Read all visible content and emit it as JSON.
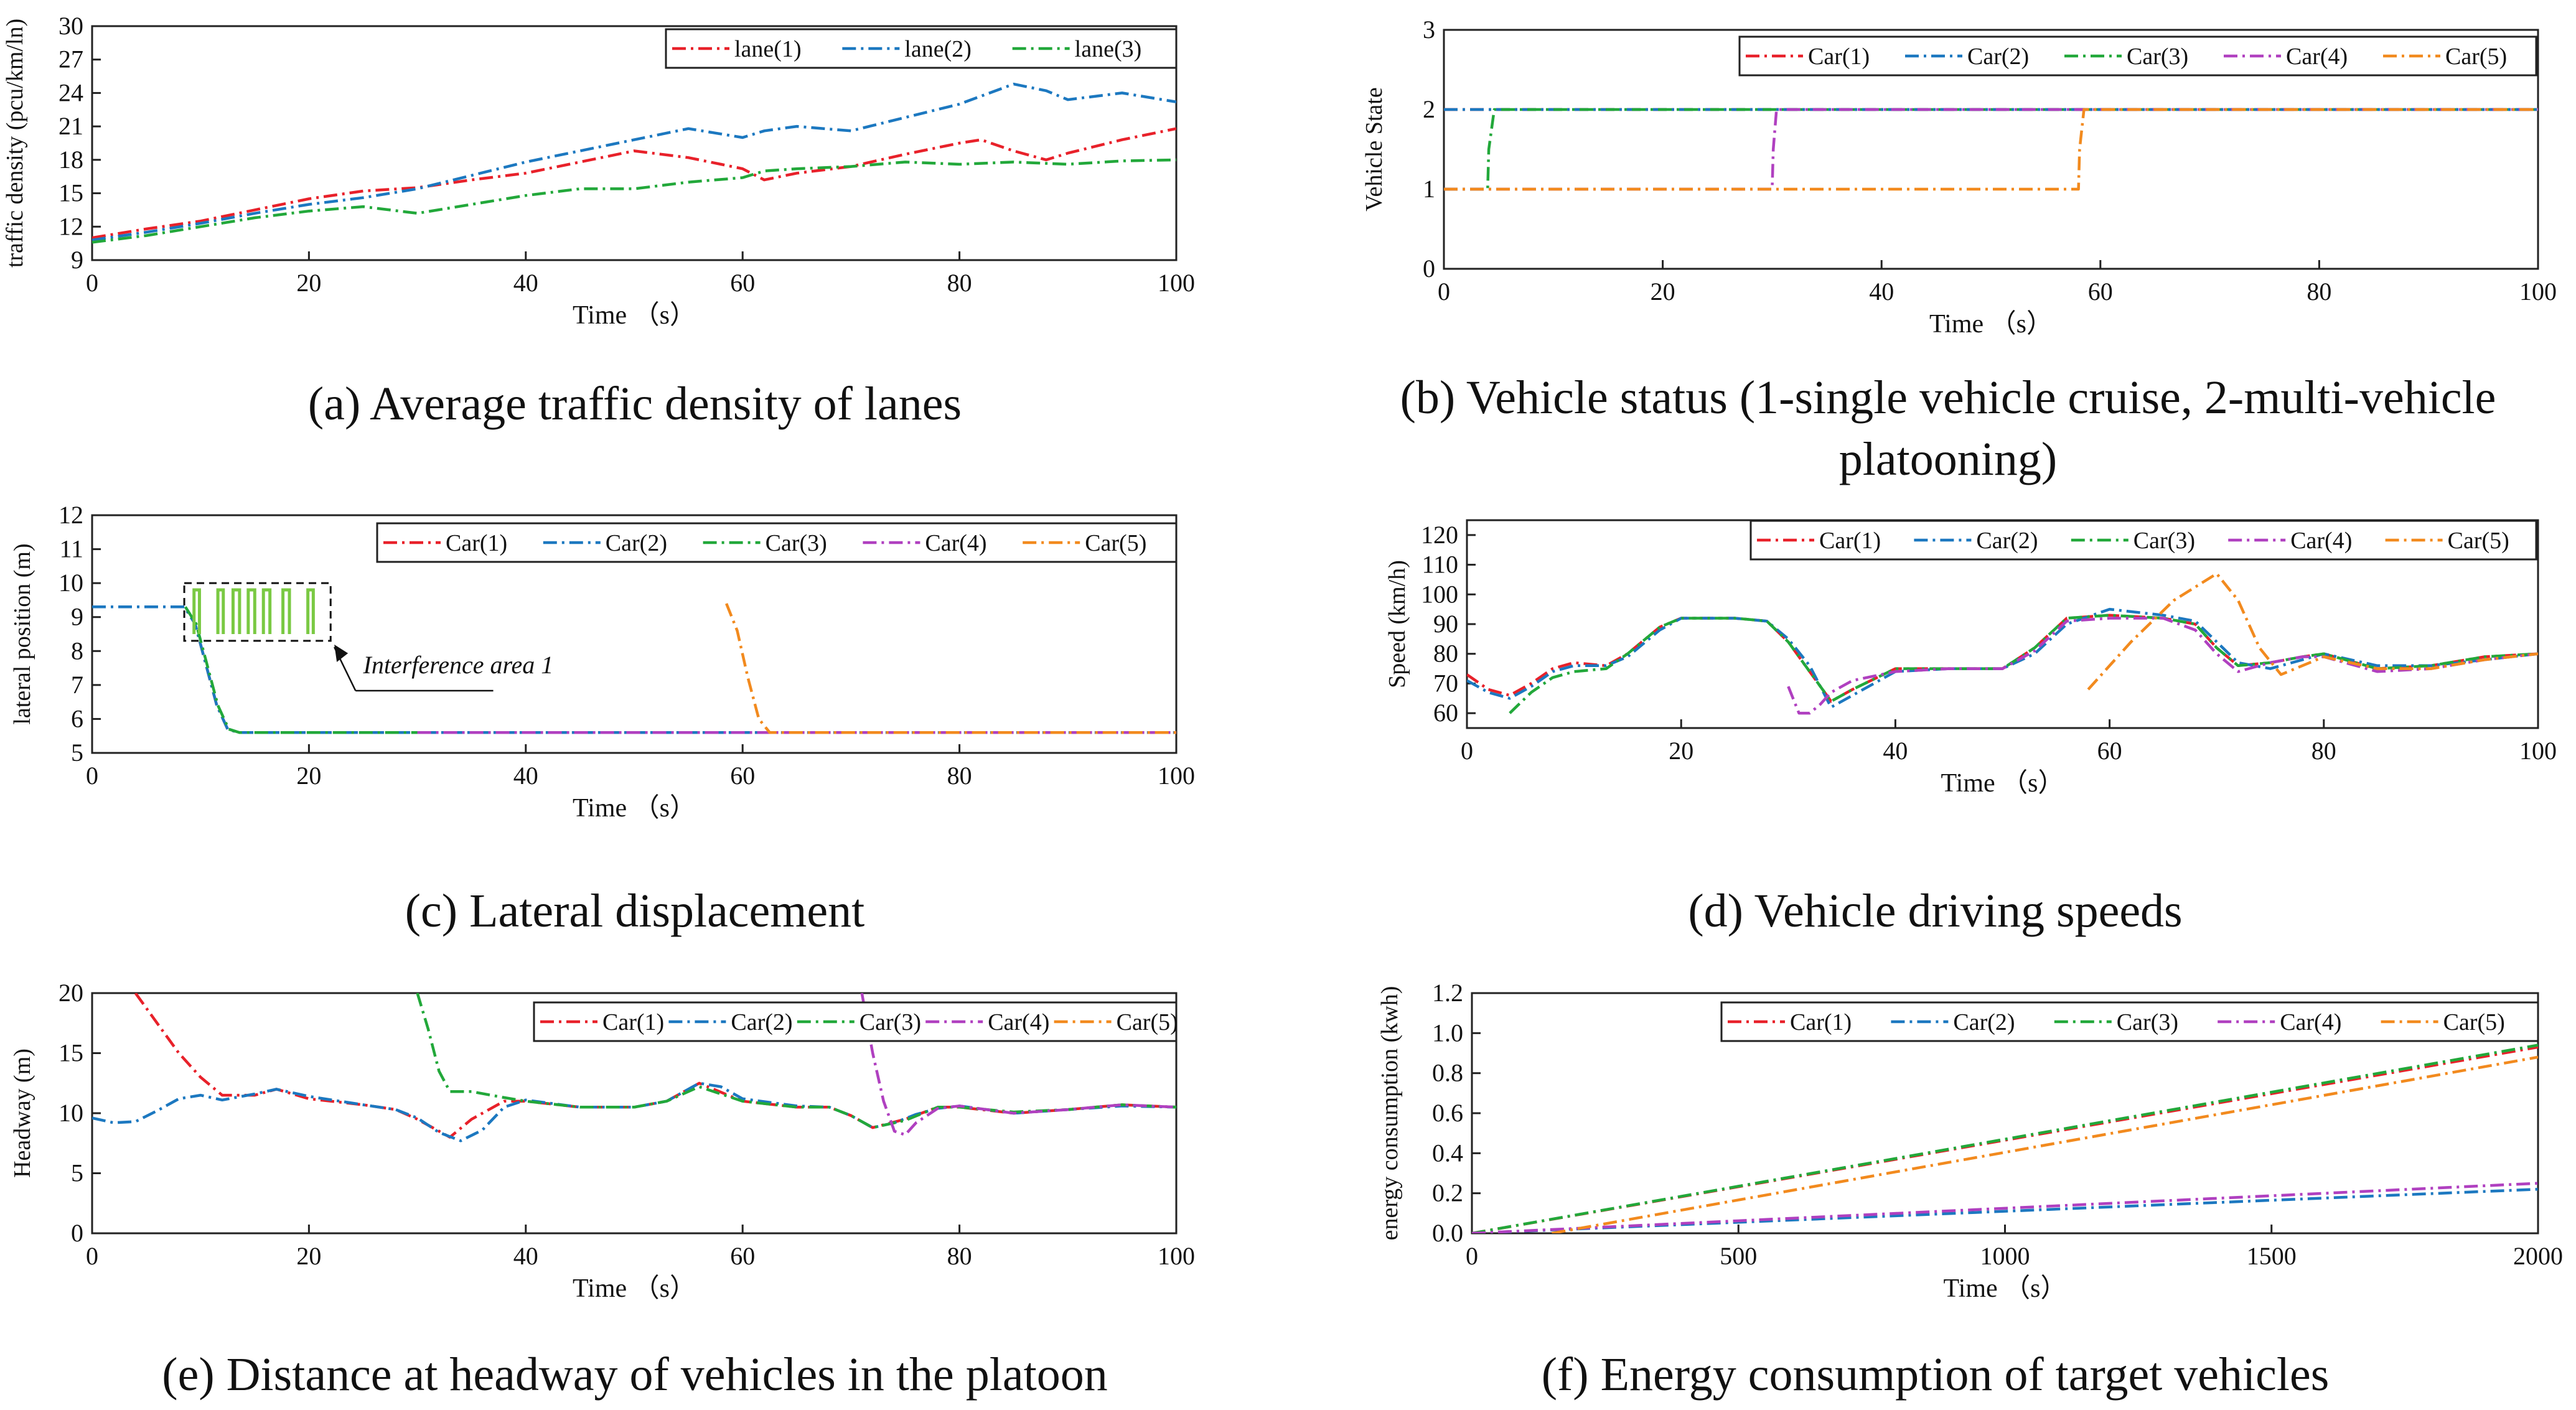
{
  "colors": {
    "c1": "#e8212a",
    "c2": "#1c78c0",
    "c3": "#22a83a",
    "c4": "#b040c0",
    "c5": "#f28a1e",
    "axis": "#222222"
  },
  "captions": {
    "a": "(a) Average traffic density of lanes",
    "b": "(b) Vehicle status (1-single vehicle cruise, 2-multi-vehicle platooning)",
    "c": "(c) Lateral displacement",
    "d": "(d) Vehicle driving speeds",
    "e": "(e) Distance at headway of vehicles in the platoon",
    "f": "(f) Energy consumption of target vehicles"
  },
  "chart_data": [
    {
      "id": "a",
      "type": "line",
      "title": "Average traffic density of lanes",
      "xlabel": "Time （s）",
      "ylabel": "traffic density (pcu/km/ln)",
      "xlim": [
        0,
        100
      ],
      "ylim": [
        9,
        30
      ],
      "xticks": [
        0,
        20,
        40,
        60,
        80,
        100
      ],
      "yticks": [
        9,
        12,
        15,
        18,
        21,
        24,
        27,
        30
      ],
      "legend_position": "top-right",
      "series": [
        {
          "name": "lane(1)",
          "color": "#e8212a",
          "x": [
            0,
            5,
            10,
            15,
            20,
            25,
            30,
            35,
            40,
            45,
            50,
            55,
            58,
            60,
            62,
            65,
            70,
            75,
            80,
            82,
            85,
            88,
            90,
            95,
            100
          ],
          "y": [
            11,
            11.8,
            12.5,
            13.5,
            14.5,
            15.2,
            15.5,
            16.2,
            16.8,
            17.8,
            18.8,
            18.2,
            17.6,
            17.2,
            16.2,
            16.8,
            17.4,
            18.5,
            19.5,
            19.8,
            18.8,
            18,
            18.6,
            19.8,
            20.8
          ]
        },
        {
          "name": "lane(2)",
          "color": "#1c78c0",
          "x": [
            0,
            5,
            10,
            15,
            20,
            25,
            30,
            35,
            40,
            45,
            50,
            55,
            60,
            62,
            65,
            70,
            75,
            80,
            85,
            88,
            90,
            95,
            100
          ],
          "y": [
            10.8,
            11.5,
            12.3,
            13.2,
            14,
            14.6,
            15.4,
            16.6,
            17.8,
            18.8,
            19.8,
            20.8,
            20,
            20.6,
            21,
            20.6,
            21.8,
            23,
            24.8,
            24.2,
            23.4,
            24,
            23.2
          ]
        },
        {
          "name": "lane(3)",
          "color": "#22a83a",
          "x": [
            0,
            5,
            10,
            15,
            20,
            25,
            30,
            35,
            40,
            45,
            50,
            55,
            60,
            62,
            65,
            70,
            75,
            80,
            85,
            90,
            95,
            100
          ],
          "y": [
            10.6,
            11.2,
            12,
            12.8,
            13.4,
            13.8,
            13.2,
            14,
            14.8,
            15.4,
            15.4,
            16,
            16.4,
            17,
            17.2,
            17.4,
            17.8,
            17.6,
            17.8,
            17.6,
            17.9,
            18
          ]
        }
      ]
    },
    {
      "id": "b",
      "type": "line",
      "title": "Vehicle status",
      "xlabel": "Time （s）",
      "ylabel": "Vehicle State",
      "xlim": [
        0,
        100
      ],
      "ylim": [
        0,
        3
      ],
      "xticks": [
        0,
        20,
        40,
        60,
        80,
        100
      ],
      "yticks": [
        0,
        1,
        2,
        3
      ],
      "legend_position": "top-right",
      "series": [
        {
          "name": "Car(1)",
          "color": "#e8212a",
          "x": [
            0,
            100
          ],
          "y": [
            2,
            2
          ]
        },
        {
          "name": "Car(2)",
          "color": "#1c78c0",
          "x": [
            0,
            100
          ],
          "y": [
            2,
            2
          ]
        },
        {
          "name": "Car(3)",
          "color": "#22a83a",
          "x": [
            0,
            4,
            4.1,
            4.6,
            100
          ],
          "y": [
            1,
            1,
            1.5,
            2,
            2
          ]
        },
        {
          "name": "Car(4)",
          "color": "#b040c0",
          "x": [
            0,
            30,
            30.1,
            30.4,
            100
          ],
          "y": [
            1,
            1,
            1.5,
            2,
            2
          ]
        },
        {
          "name": "Car(5)",
          "color": "#f28a1e",
          "x": [
            0,
            58,
            58.1,
            58.5,
            100
          ],
          "y": [
            1,
            1,
            1.5,
            2,
            2
          ]
        }
      ]
    },
    {
      "id": "c",
      "type": "line",
      "title": "Lateral displacement",
      "xlabel": "Time （s）",
      "ylabel": "lateral position (m)",
      "xlim": [
        0,
        100
      ],
      "ylim": [
        5,
        12
      ],
      "xticks": [
        0,
        20,
        40,
        60,
        80,
        100
      ],
      "yticks": [
        5,
        6,
        7,
        8,
        9,
        10,
        11,
        12
      ],
      "legend_position": "top-right",
      "annotation": "Interference area 1",
      "series": [
        {
          "name": "Car(1)",
          "color": "#e8212a",
          "x": [
            0,
            8.5,
            9.5,
            10.5,
            11.5,
            12.5,
            13.5,
            100
          ],
          "y": [
            9.3,
            9.3,
            8.8,
            7.6,
            6.4,
            5.7,
            5.6,
            5.6
          ]
        },
        {
          "name": "Car(2)",
          "color": "#1c78c0",
          "x": [
            0,
            8.5,
            9.5,
            10.5,
            11.5,
            12.5,
            13.5,
            100
          ],
          "y": [
            9.3,
            9.3,
            8.8,
            7.6,
            6.4,
            5.7,
            5.6,
            5.6
          ]
        },
        {
          "name": "Car(3)",
          "color": "#22a83a",
          "x": [
            8.6,
            9.6,
            10.6,
            11.6,
            12.6,
            13.6,
            30
          ],
          "y": [
            9.3,
            8.8,
            7.6,
            6.4,
            5.7,
            5.6,
            5.6
          ]
        },
        {
          "name": "Car(4)",
          "color": "#b040c0",
          "x": [
            30,
            100
          ],
          "y": [
            5.6,
            5.6
          ]
        },
        {
          "name": "Car(5)",
          "color": "#f28a1e",
          "x": [
            58.5,
            59.5,
            60.5,
            61.5,
            62.5,
            100
          ],
          "y": [
            9.4,
            8.6,
            7.2,
            6.0,
            5.6,
            5.6
          ]
        }
      ]
    },
    {
      "id": "d",
      "type": "line",
      "title": "Vehicle driving speeds",
      "xlabel": "Time （s）",
      "ylabel": "Speed (km/h)",
      "xlim": [
        0,
        100
      ],
      "ylim": [
        55,
        125
      ],
      "xticks": [
        0,
        20,
        40,
        60,
        80,
        100
      ],
      "yticks": [
        60,
        70,
        80,
        90,
        100,
        110,
        120
      ],
      "legend_position": "top-right",
      "series": [
        {
          "name": "Car(1)",
          "color": "#e8212a",
          "x": [
            0,
            2,
            4,
            6,
            8,
            10,
            13,
            15,
            18,
            20,
            25,
            28,
            30,
            32,
            34,
            36,
            40,
            45,
            50,
            53,
            56,
            60,
            65,
            68,
            70,
            72,
            75,
            78,
            80,
            85,
            90,
            95,
            100
          ],
          "y": [
            73,
            68,
            66,
            70,
            75,
            77,
            76,
            80,
            89,
            92,
            92,
            91,
            84,
            74,
            64,
            68,
            75,
            75,
            75,
            82,
            92,
            93,
            92,
            90,
            82,
            76,
            77,
            79,
            80,
            75,
            76,
            79,
            80
          ]
        },
        {
          "name": "Car(2)",
          "color": "#1c78c0",
          "x": [
            0,
            2,
            4,
            6,
            8,
            10,
            13,
            15,
            18,
            20,
            25,
            28,
            30,
            32,
            34,
            36,
            40,
            45,
            50,
            53,
            56,
            60,
            65,
            68,
            70,
            72,
            75,
            78,
            80,
            85,
            90,
            95,
            100
          ],
          "y": [
            71,
            67,
            65,
            69,
            74,
            76,
            76,
            79,
            88,
            92,
            92,
            91,
            85,
            76,
            62,
            66,
            74,
            75,
            75,
            80,
            90,
            95,
            93,
            91,
            84,
            77,
            75,
            78,
            80,
            76,
            76,
            78,
            80
          ]
        },
        {
          "name": "Car(3)",
          "color": "#22a83a",
          "x": [
            4,
            6,
            8,
            10,
            13,
            15,
            18,
            20,
            25,
            28,
            30,
            32,
            34,
            36,
            40,
            45,
            50,
            53,
            56,
            60,
            65,
            68,
            70,
            72,
            75,
            78,
            80,
            85,
            90,
            95,
            100
          ],
          "y": [
            60,
            67,
            72,
            74,
            75,
            80,
            89,
            92,
            92,
            91,
            84,
            74,
            64,
            68,
            75,
            75,
            75,
            82,
            92,
            93,
            92,
            90,
            82,
            76,
            77,
            79,
            80,
            75,
            76,
            79,
            80
          ]
        },
        {
          "name": "Car(4)",
          "color": "#b040c0",
          "x": [
            30,
            31,
            32,
            33,
            34,
            36,
            40,
            45,
            50,
            53,
            56,
            60,
            65,
            68,
            70,
            72,
            75,
            78,
            80,
            85,
            90,
            95,
            100
          ],
          "y": [
            69,
            60,
            60,
            63,
            67,
            71,
            74,
            75,
            75,
            81,
            91,
            92,
            92,
            88,
            80,
            74,
            77,
            79,
            79,
            74,
            75,
            78,
            80
          ]
        },
        {
          "name": "Car(5)",
          "color": "#f28a1e",
          "x": [
            58,
            62,
            66,
            70,
            72,
            74,
            76,
            80,
            85,
            90,
            95,
            100
          ],
          "y": [
            68,
            84,
            98,
            107,
            98,
            82,
            73,
            79,
            75,
            75,
            78,
            80
          ]
        }
      ]
    },
    {
      "id": "e",
      "type": "line",
      "title": "Distance at headway of vehicles in the platoon",
      "xlabel": "Time （s）",
      "ylabel": "Headway (m)",
      "xlim": [
        0,
        100
      ],
      "ylim": [
        0,
        20
      ],
      "xticks": [
        0,
        20,
        40,
        60,
        80,
        100
      ],
      "yticks": [
        0,
        5,
        10,
        15,
        20
      ],
      "legend_position": "top-right",
      "series": [
        {
          "name": "Car(1)",
          "color": "#e8212a",
          "x": [
            4,
            6,
            8,
            10,
            12,
            15,
            17,
            20,
            25,
            28,
            30,
            33,
            35,
            38,
            40,
            45,
            50,
            53,
            56,
            60,
            65,
            68,
            70,
            72,
            75,
            78,
            80,
            85,
            90,
            95,
            100
          ],
          "y": [
            20,
            17.5,
            15,
            13,
            11.5,
            11.5,
            12,
            11.2,
            10.7,
            10.3,
            9.5,
            8,
            9.5,
            11,
            11,
            10.5,
            10.5,
            11,
            12.5,
            11,
            10.5,
            10.5,
            9.8,
            8.8,
            9.5,
            10.5,
            10.5,
            10,
            10.3,
            10.7,
            10.5
          ]
        },
        {
          "name": "Car(2)",
          "color": "#1c78c0",
          "x": [
            0,
            2,
            4,
            6,
            8,
            10,
            12,
            15,
            17,
            20,
            25,
            28,
            30,
            32,
            34,
            36,
            38,
            40,
            45,
            50,
            53,
            56,
            58,
            60,
            65,
            68,
            70,
            72,
            74,
            76,
            78,
            80,
            85,
            90,
            95,
            100
          ],
          "y": [
            9.6,
            9.2,
            9.3,
            10.2,
            11.2,
            11.5,
            11.1,
            11.6,
            12,
            11.4,
            10.7,
            10.3,
            9.6,
            8.4,
            7.7,
            8.6,
            10.5,
            11.1,
            10.5,
            10.5,
            11,
            12.5,
            12.2,
            11.2,
            10.6,
            10.5,
            9.8,
            8.8,
            9.2,
            9.9,
            10.4,
            10.6,
            10,
            10.3,
            10.6,
            10.5
          ]
        },
        {
          "name": "Car(3)",
          "color": "#22a83a",
          "x": [
            30,
            31,
            32,
            33,
            35,
            38,
            40,
            45,
            50,
            53,
            56,
            60,
            65,
            68,
            70,
            72,
            75,
            78,
            80,
            85,
            90,
            95,
            100
          ],
          "y": [
            20,
            17,
            13.5,
            11.8,
            11.8,
            11.3,
            11,
            10.5,
            10.5,
            11,
            12.2,
            11,
            10.5,
            10.5,
            9.8,
            8.8,
            9.4,
            10.5,
            10.5,
            10.1,
            10.3,
            10.7,
            10.5
          ]
        },
        {
          "name": "Car(4)",
          "color": "#b040c0",
          "x": [
            71,
            72,
            73,
            74,
            75,
            76,
            78,
            80,
            85,
            90,
            95,
            100
          ],
          "y": [
            20,
            15,
            11,
            8.5,
            8.2,
            9.2,
            10.4,
            10.6,
            10,
            10.3,
            10.7,
            10.5
          ]
        },
        {
          "name": "Car(5)",
          "color": "#f28a1e",
          "x": [],
          "y": []
        }
      ]
    },
    {
      "id": "f",
      "type": "line",
      "title": "Energy consumption of target vehicles",
      "xlabel": "Time （s）",
      "ylabel": "energy consumption (kwh)",
      "xlim": [
        0,
        2000
      ],
      "ylim": [
        0,
        1.2
      ],
      "xticks": [
        0,
        500,
        1000,
        1500,
        2000
      ],
      "yticks": [
        0.0,
        0.2,
        0.4,
        0.6,
        0.8,
        1.0,
        1.2
      ],
      "legend_position": "top-right",
      "series": [
        {
          "name": "Car(1)",
          "color": "#e8212a",
          "x": [
            0,
            2000
          ],
          "y": [
            0,
            0.93
          ]
        },
        {
          "name": "Car(2)",
          "color": "#1c78c0",
          "x": [
            0,
            2000
          ],
          "y": [
            0,
            0.22
          ]
        },
        {
          "name": "Car(3)",
          "color": "#22a83a",
          "x": [
            0,
            2000
          ],
          "y": [
            0,
            0.94
          ]
        },
        {
          "name": "Car(4)",
          "color": "#b040c0",
          "x": [
            0,
            2000
          ],
          "y": [
            0,
            0.25
          ]
        },
        {
          "name": "Car(5)",
          "color": "#f28a1e",
          "x": [
            150,
            2000
          ],
          "y": [
            0,
            0.88
          ]
        }
      ]
    }
  ]
}
